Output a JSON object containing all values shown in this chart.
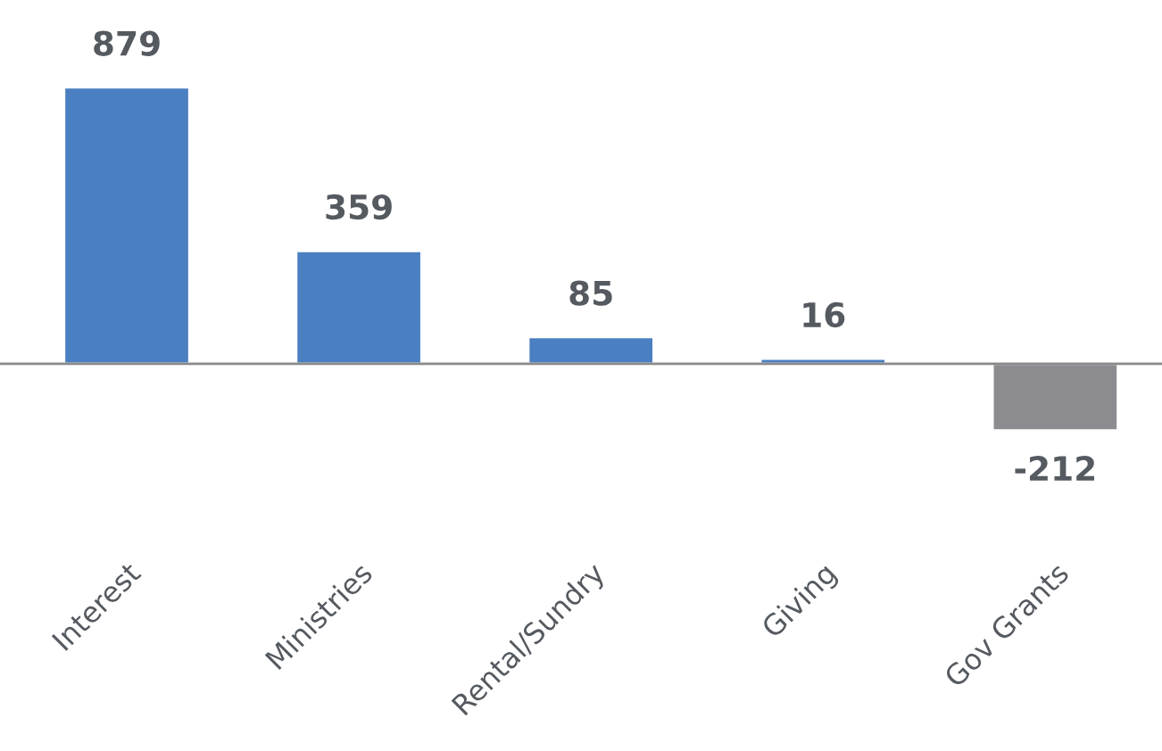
{
  "chart_data": {
    "type": "bar",
    "categories": [
      "Interest",
      "Ministries",
      "Rental/Sundry",
      "Giving",
      "Gov Grants"
    ],
    "values": [
      879,
      359,
      85,
      16,
      -212
    ],
    "colors": [
      "#4a7fc1",
      "#4a7fc1",
      "#4a7fc1",
      "#4a7fc1",
      "#8c8c90"
    ],
    "data_labels": true,
    "grid": false,
    "legend": false,
    "tick_labels": "x"
  }
}
